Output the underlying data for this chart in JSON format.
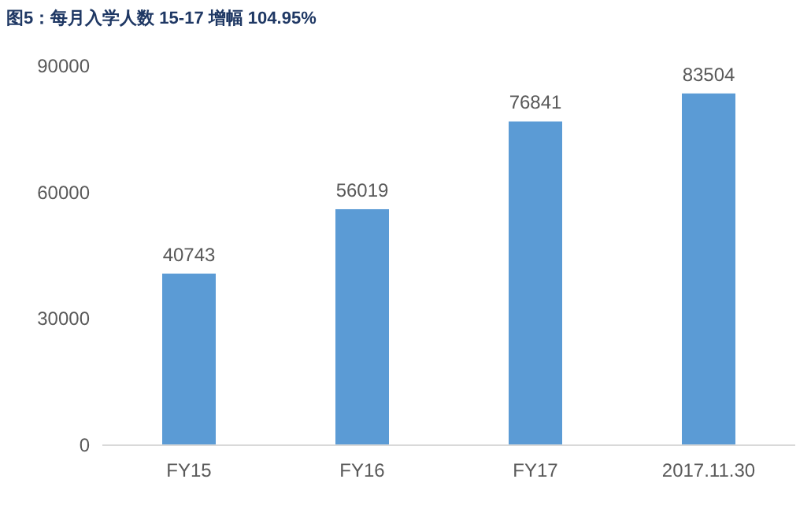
{
  "chart_data": {
    "type": "bar",
    "title": "图5：每月入学人数 15-17 增幅 104.95%",
    "categories": [
      "FY15",
      "FY16",
      "FY17",
      "2017.11.30"
    ],
    "values": [
      40743,
      56019,
      76841,
      83504
    ],
    "color": "#5b9bd5",
    "ylim": [
      0,
      90000
    ],
    "yticks": [
      0,
      30000,
      60000,
      90000
    ],
    "data_labels": true
  }
}
